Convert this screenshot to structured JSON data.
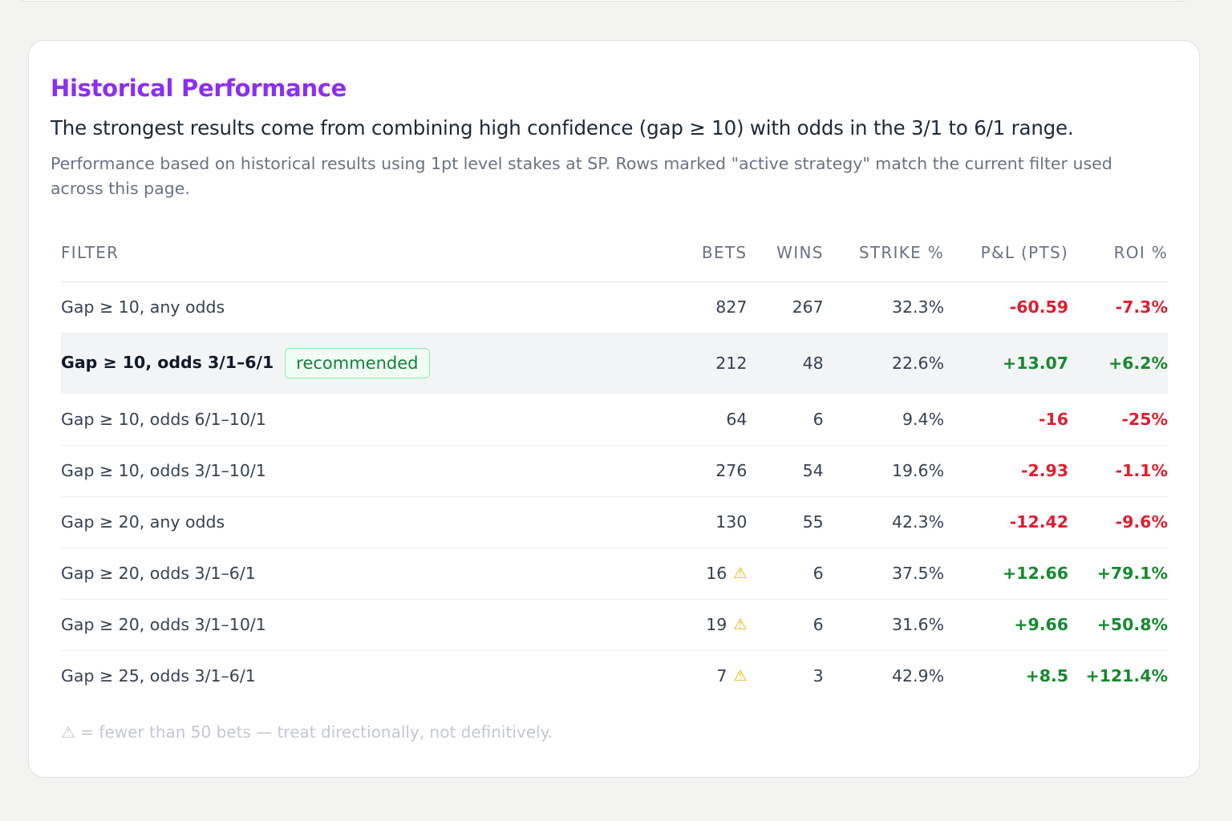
{
  "section": {
    "title": "Historical Performance",
    "subtitle": "The strongest results come from combining high confidence (gap ≥ 10) with odds in the 3/1 to 6/1 range.",
    "description": "Performance based on historical results using 1pt level stakes at SP. Rows marked \"active strategy\" match the current filter used across this page."
  },
  "table": {
    "headers": {
      "filter": "FILTER",
      "bets": "BETS",
      "wins": "WINS",
      "strike": "STRIKE %",
      "pl": "P&L (PTS)",
      "roi": "ROI %"
    },
    "rows": [
      {
        "filter": "Gap ≥ 10, any odds",
        "bets": "827",
        "wins": "267",
        "strike": "32.3%",
        "pl": "-60.59",
        "roi": "-7.3%"
      },
      {
        "filter": "Gap ≥ 10, odds 3/1–6/1",
        "badge": "recommended",
        "bets": "212",
        "wins": "48",
        "strike": "22.6%",
        "pl": "+13.07",
        "roi": "+6.2%"
      },
      {
        "filter": "Gap ≥ 10, odds 6/1–10/1",
        "bets": "64",
        "wins": "6",
        "strike": "9.4%",
        "pl": "-16",
        "roi": "-25%"
      },
      {
        "filter": "Gap ≥ 10, odds 3/1–10/1",
        "bets": "276",
        "wins": "54",
        "strike": "19.6%",
        "pl": "-2.93",
        "roi": "-1.1%"
      },
      {
        "filter": "Gap ≥ 20, any odds",
        "bets": "130",
        "wins": "55",
        "strike": "42.3%",
        "pl": "-12.42",
        "roi": "-9.6%"
      },
      {
        "filter": "Gap ≥ 20, odds 3/1–6/1",
        "bets": "16",
        "warning_icon": "warning-triangle-icon",
        "wins": "6",
        "strike": "37.5%",
        "pl": "+12.66",
        "roi": "+79.1%"
      },
      {
        "filter": "Gap ≥ 20, odds 3/1–10/1",
        "bets": "19",
        "warning_icon": "warning-triangle-icon",
        "wins": "6",
        "strike": "31.6%",
        "pl": "+9.66",
        "roi": "+50.8%"
      },
      {
        "filter": "Gap ≥ 25, odds 3/1–6/1",
        "bets": "7",
        "warning_icon": "warning-triangle-icon",
        "wins": "3",
        "strike": "42.9%",
        "pl": "+8.5",
        "roi": "+121.4%"
      }
    ]
  },
  "footnote": "⚠ = fewer than 50 bets — treat directionally, not definitively.",
  "colors": {
    "title": "#8b2ff2",
    "positive": "#168a2e",
    "negative": "#e11d2e",
    "warning": "#eab308",
    "badge_border": "#86efac"
  }
}
